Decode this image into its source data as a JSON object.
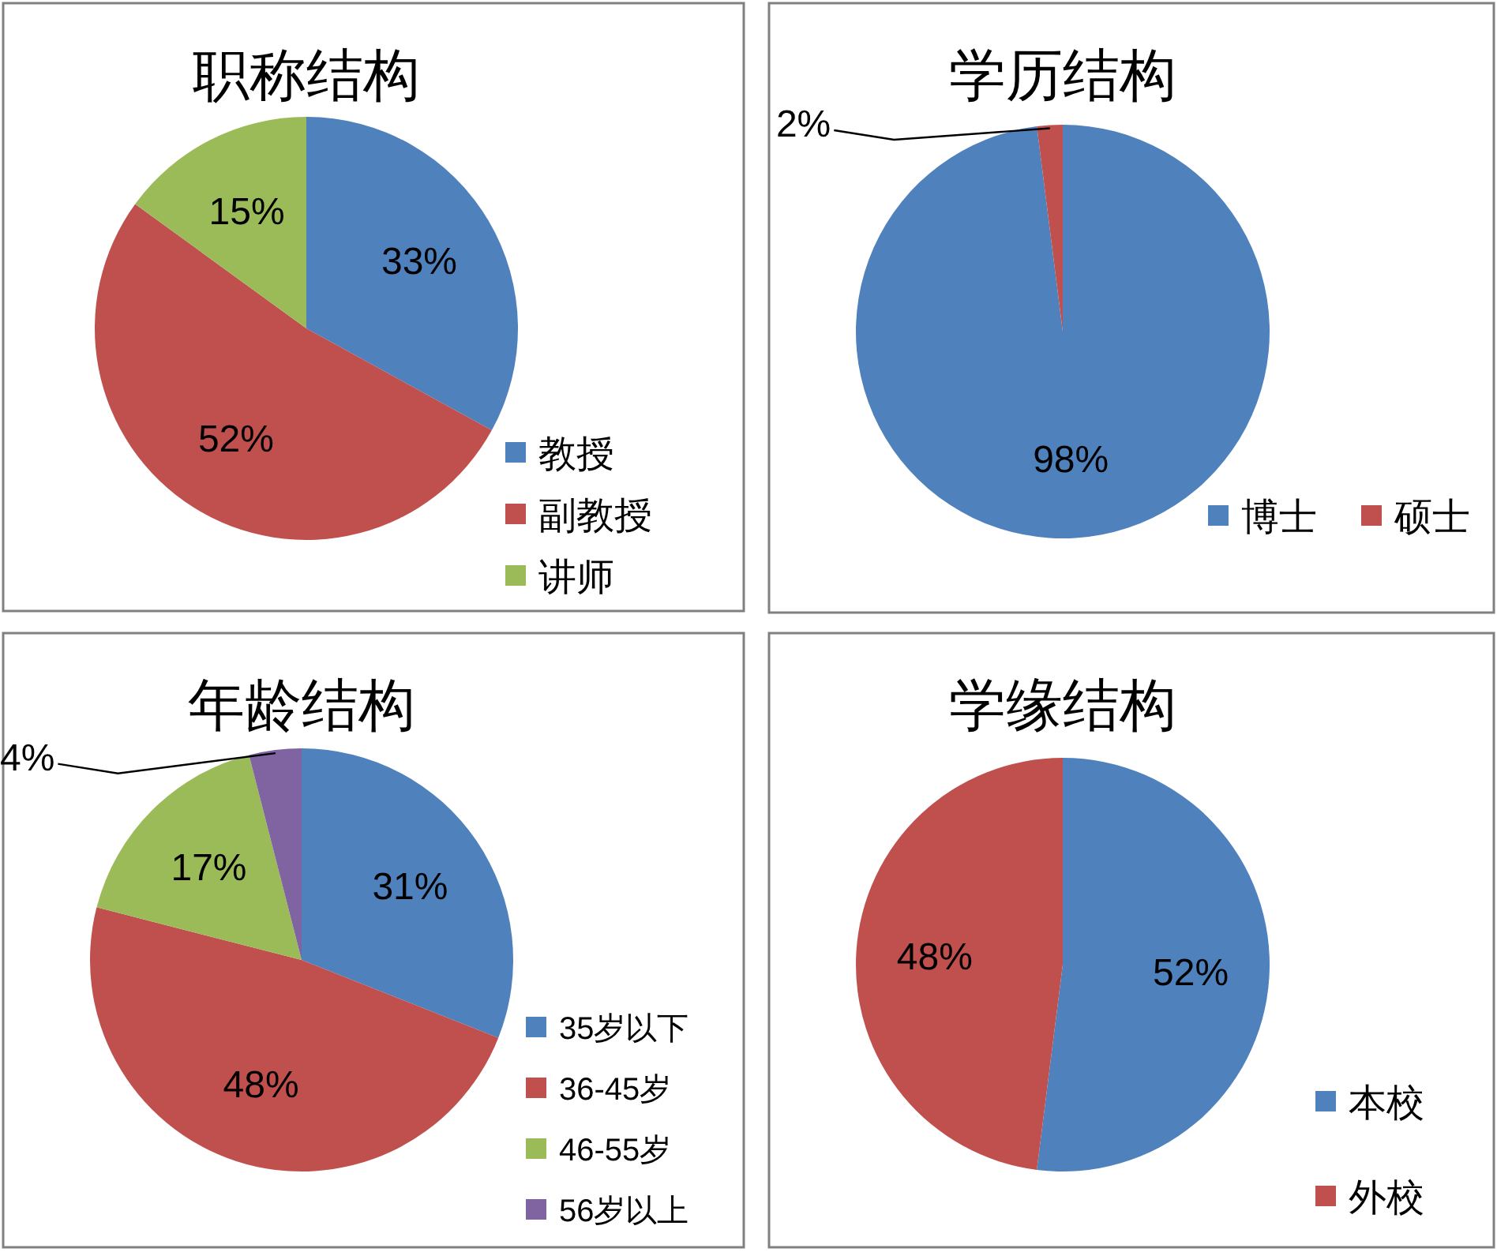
{
  "chart_data": [
    {
      "type": "pie",
      "title": "职称结构",
      "categories": [
        "教授",
        "副教授",
        "讲师"
      ],
      "values": [
        33,
        52,
        15
      ],
      "colors": [
        "#4f81bd",
        "#c0504d",
        "#9bbb59"
      ],
      "value_labels": [
        "33%",
        "52%",
        "15%"
      ],
      "legend": "bottom right"
    },
    {
      "type": "pie",
      "title": "学历结构",
      "categories": [
        "博士",
        "硕士"
      ],
      "values": [
        98,
        2
      ],
      "colors": [
        "#4f81bd",
        "#c0504d"
      ],
      "value_labels": [
        "98%",
        "2%"
      ],
      "legend": "bottom"
    },
    {
      "type": "pie",
      "title": "年龄结构",
      "categories": [
        "35岁以下",
        "36-45岁",
        "46-55岁",
        "56岁以上"
      ],
      "values": [
        31,
        48,
        17,
        4
      ],
      "colors": [
        "#4f81bd",
        "#c0504d",
        "#9bbb59",
        "#8064a2"
      ],
      "value_labels": [
        "31%",
        "48%",
        "17%",
        "4%"
      ],
      "legend": "bottom right"
    },
    {
      "type": "pie",
      "title": "学缘结构",
      "categories": [
        "本校",
        "外校"
      ],
      "values": [
        52,
        48
      ],
      "colors": [
        "#4f81bd",
        "#c0504d"
      ],
      "value_labels": [
        "52%",
        "48%"
      ],
      "legend": "bottom right"
    }
  ]
}
